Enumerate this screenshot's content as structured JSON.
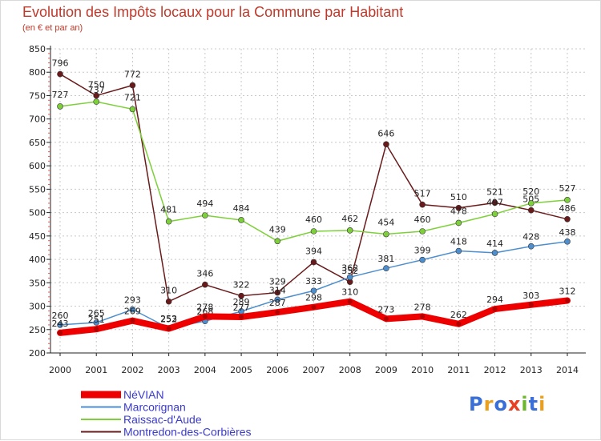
{
  "title": "Evolution des Impôts locaux pour la Commune par Habitant",
  "subtitle": "(en € et par an)",
  "logo_text": "Proxiti",
  "colors": {
    "title": "#c0392b",
    "axis": "#222222",
    "grid": "#c8c8c8",
    "legend_text": "#3a3ad0"
  },
  "chart_data": {
    "type": "line",
    "x": [
      2000,
      2001,
      2002,
      2003,
      2004,
      2005,
      2006,
      2007,
      2008,
      2009,
      2010,
      2011,
      2012,
      2013,
      2014
    ],
    "ylim": [
      200,
      850
    ],
    "yticks": [
      200,
      250,
      300,
      350,
      400,
      450,
      500,
      550,
      600,
      650,
      700,
      750,
      800,
      850
    ],
    "grid": true,
    "legend_position": "bottom-left",
    "series": [
      {
        "name": "NéVIAN",
        "color": "#ee0000",
        "values": [
          243,
          251,
          269,
          252,
          278,
          277,
          287,
          298,
          310,
          273,
          278,
          262,
          294,
          303,
          312
        ]
      },
      {
        "name": "Marcorignan",
        "color": "#4d8fce",
        "values": [
          260,
          265,
          293,
          253,
          268,
          289,
          314,
          333,
          362,
          381,
          399,
          418,
          414,
          428,
          438
        ]
      },
      {
        "name": "Raissac-d'Aude",
        "color": "#7ed03a",
        "values": [
          727,
          737,
          721,
          481,
          494,
          484,
          439,
          460,
          462,
          454,
          460,
          478,
          497,
          520,
          527
        ]
      },
      {
        "name": "Montredon-des-Corbières",
        "color": "#6a1a1a",
        "values": [
          796,
          750,
          772,
          310,
          346,
          322,
          329,
          394,
          352,
          646,
          517,
          510,
          521,
          505,
          486
        ]
      }
    ]
  }
}
